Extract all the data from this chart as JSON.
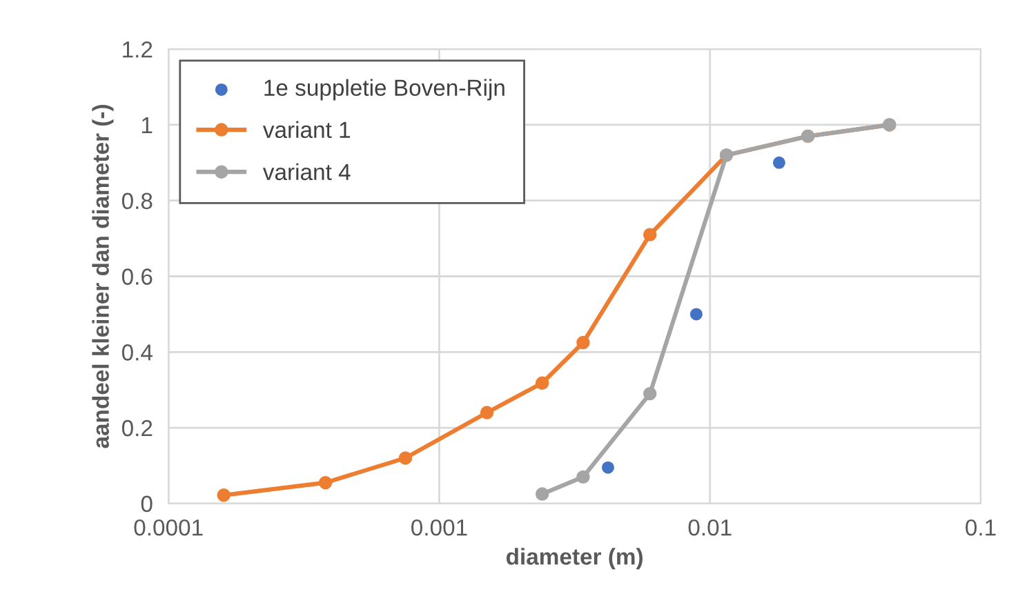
{
  "chart_data": {
    "type": "line",
    "xlabel": "diameter (m)",
    "ylabel": "aandeel kleiner dan diameter (-)",
    "log": "x",
    "xlim": [
      0.0001,
      0.1
    ],
    "xticks": [
      0.0001,
      0.001,
      0.01,
      0.1
    ],
    "ylim": [
      0,
      1.2
    ],
    "yticks": [
      0,
      0.2,
      0.4,
      0.6,
      0.8,
      1,
      1.2
    ],
    "grid": true,
    "legend": "top left",
    "marker": "circle",
    "line_style": "solid",
    "series": [
      {
        "name": "1e suppletie Boven-Rijn",
        "type": "scatter",
        "color": "#4472c4",
        "x": [
          0.0042,
          0.0089,
          0.018
        ],
        "values": [
          0.095,
          0.5,
          0.9
        ]
      },
      {
        "name": "variant 1",
        "color": "#ed7d31",
        "x": [
          0.00016,
          0.00038,
          0.00075,
          0.0015,
          0.0024,
          0.0034,
          0.006,
          0.0115,
          0.023,
          0.046
        ],
        "values": [
          0.022,
          0.055,
          0.12,
          0.24,
          0.318,
          0.425,
          0.71,
          0.92,
          0.97,
          1.0
        ]
      },
      {
        "name": "variant 4",
        "color": "#a5a5a5",
        "x": [
          0.0024,
          0.0034,
          0.006,
          0.0115,
          0.023,
          0.046
        ],
        "values": [
          0.025,
          0.07,
          0.29,
          0.92,
          0.97,
          1.0
        ]
      }
    ]
  }
}
